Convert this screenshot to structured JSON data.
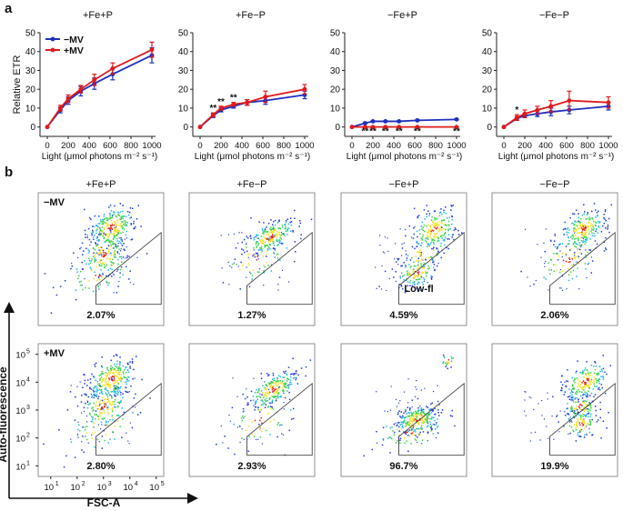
{
  "panels": {
    "a_label": "a",
    "b_label": "b"
  },
  "colors": {
    "minus_mv": "#1f2fbf",
    "plus_mv": "#e01b1b",
    "axis": "#222222",
    "gate": "#444444",
    "dot_blue": "#1e3cd8",
    "dot_cyan": "#22b8e8",
    "dot_green": "#39d24a",
    "dot_yellow": "#f5e02a",
    "dot_red": "#e0281f"
  },
  "chart_data": [
    {
      "type": "line",
      "title": "+Fe+P",
      "x": [
        0,
        125,
        200,
        320,
        450,
        625,
        1000
      ],
      "xticks": [
        "0",
        "200",
        "400",
        "600",
        "800",
        "1000"
      ],
      "xtick_values": [
        0,
        200,
        400,
        600,
        800,
        1000
      ],
      "ylim": [
        -5,
        50
      ],
      "yticks": [
        "0",
        "10",
        "20",
        "30",
        "40",
        "50"
      ],
      "ytick_values": [
        0,
        10,
        20,
        30,
        40,
        50
      ],
      "ylabel": "Relative ETR",
      "xlabel": "Light (μmol photons m⁻² s⁻¹)",
      "legend": [
        "−MV",
        "+MV"
      ],
      "series": [
        {
          "name": "−MV",
          "values": [
            0,
            9,
            14,
            19,
            23,
            28,
            38
          ],
          "err": [
            0,
            1.5,
            2,
            2.5,
            3,
            3,
            4
          ]
        },
        {
          "name": "+MV",
          "values": [
            0,
            10,
            15,
            20,
            25,
            31,
            41
          ],
          "err": [
            0,
            1.5,
            2,
            2,
            3,
            3,
            4
          ]
        }
      ],
      "annotations": []
    },
    {
      "type": "line",
      "title": "+Fe−P",
      "x": [
        0,
        125,
        200,
        320,
        450,
        625,
        1000
      ],
      "xticks": [
        "0",
        "200",
        "400",
        "600",
        "800",
        "1000"
      ],
      "xtick_values": [
        0,
        200,
        400,
        600,
        800,
        1000
      ],
      "ylim": [
        -5,
        50
      ],
      "yticks": [
        "0",
        "10",
        "20",
        "30",
        "40",
        "50"
      ],
      "ytick_values": [
        0,
        10,
        20,
        30,
        40,
        50
      ],
      "xlabel": "Light (μmol photons m⁻² s⁻¹)",
      "series": [
        {
          "name": "−MV",
          "values": [
            0,
            6,
            9,
            11,
            13,
            14,
            17
          ],
          "err": [
            0,
            1,
            1,
            1,
            1.5,
            2,
            2
          ]
        },
        {
          "name": "+MV",
          "values": [
            0,
            6.5,
            10,
            12,
            13,
            16,
            20
          ],
          "err": [
            0,
            1,
            1,
            1,
            1.5,
            3,
            2.5
          ]
        }
      ],
      "annotations": [
        {
          "x": 125,
          "text": "**"
        },
        {
          "x": 200,
          "text": "**"
        },
        {
          "x": 320,
          "text": "**"
        }
      ]
    },
    {
      "type": "line",
      "title": "−Fe+P",
      "x": [
        0,
        125,
        200,
        320,
        450,
        625,
        1000
      ],
      "xticks": [
        "0",
        "200",
        "400",
        "600",
        "800",
        "1000"
      ],
      "xtick_values": [
        0,
        200,
        400,
        600,
        800,
        1000
      ],
      "ylim": [
        -5,
        50
      ],
      "yticks": [
        "0",
        "10",
        "20",
        "30",
        "40",
        "50"
      ],
      "ytick_values": [
        0,
        10,
        20,
        30,
        40,
        50
      ],
      "xlabel": "Light (μmol photons m⁻² s⁻¹)",
      "series": [
        {
          "name": "−MV",
          "values": [
            0,
            2,
            3,
            3,
            3,
            3.5,
            4
          ],
          "err": [
            0,
            0.3,
            0.3,
            0.3,
            0.3,
            0.3,
            0.3
          ]
        },
        {
          "name": "+MV",
          "values": [
            0,
            0,
            0,
            0,
            0,
            0,
            0
          ],
          "err": [
            0,
            0.2,
            0.2,
            0.2,
            0.2,
            0.2,
            0.2
          ]
        }
      ],
      "annotations": [
        {
          "x": 125,
          "text": "**",
          "below": true
        },
        {
          "x": 200,
          "text": "**",
          "below": true
        },
        {
          "x": 320,
          "text": "**",
          "below": true
        },
        {
          "x": 450,
          "text": "**",
          "below": true
        },
        {
          "x": 625,
          "text": "**",
          "below": true
        },
        {
          "x": 1000,
          "text": "**",
          "below": true
        }
      ]
    },
    {
      "type": "line",
      "title": "−Fe−P",
      "x": [
        0,
        125,
        200,
        320,
        450,
        625,
        1000
      ],
      "xticks": [
        "0",
        "200",
        "400",
        "600",
        "800",
        "1000"
      ],
      "xtick_values": [
        0,
        200,
        400,
        600,
        800,
        1000
      ],
      "ylim": [
        -5,
        50
      ],
      "yticks": [
        "0",
        "10",
        "20",
        "30",
        "40",
        "50"
      ],
      "ytick_values": [
        0,
        10,
        20,
        30,
        40,
        50
      ],
      "xlabel": "Light (μmol photons m⁻² s⁻¹)",
      "series": [
        {
          "name": "−MV",
          "values": [
            0,
            4.5,
            6,
            7,
            8,
            9,
            11
          ],
          "err": [
            0,
            1,
            1,
            1.5,
            2,
            2,
            2
          ]
        },
        {
          "name": "+MV",
          "values": [
            0,
            5,
            7,
            9,
            11,
            14,
            13
          ],
          "err": [
            0,
            1.5,
            2,
            2,
            3,
            5,
            3
          ]
        }
      ],
      "annotations": [
        {
          "x": 125,
          "text": "*"
        }
      ]
    }
  ],
  "flow": {
    "columns": [
      "+Fe+P",
      "+Fe−P",
      "−Fe+P",
      "−Fe−P"
    ],
    "row_labels": [
      "−MV",
      "+MV"
    ],
    "gate_label": "Low-fl",
    "percentages": [
      [
        "2.07%",
        "1.27%",
        "4.59%",
        "2.06%"
      ],
      [
        "2.80%",
        "2.93%",
        "96.7%",
        "19.9%"
      ]
    ],
    "y_axis_label": "Auto-fluorescence",
    "x_axis_label": "FSC-A",
    "log_ticks": [
      "10",
      "10",
      "10",
      "10",
      "10"
    ],
    "log_exponents": [
      "1",
      "2",
      "3",
      "4",
      "5"
    ]
  }
}
